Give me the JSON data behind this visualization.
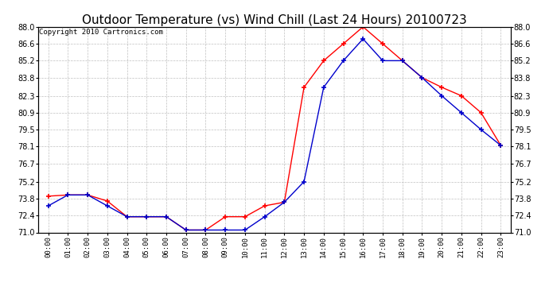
{
  "title": "Outdoor Temperature (vs) Wind Chill (Last 24 Hours) 20100723",
  "copyright": "Copyright 2010 Cartronics.com",
  "hours": [
    "00:00",
    "01:00",
    "02:00",
    "03:00",
    "04:00",
    "05:00",
    "06:00",
    "07:00",
    "08:00",
    "09:00",
    "10:00",
    "11:00",
    "12:00",
    "13:00",
    "14:00",
    "15:00",
    "16:00",
    "17:00",
    "18:00",
    "19:00",
    "20:00",
    "21:00",
    "22:00",
    "23:00"
  ],
  "outdoor_temp": [
    74.0,
    74.1,
    74.1,
    73.6,
    72.3,
    72.3,
    72.3,
    71.2,
    71.2,
    72.3,
    72.3,
    73.2,
    73.5,
    83.0,
    85.2,
    86.6,
    88.0,
    86.6,
    85.2,
    83.8,
    83.0,
    82.3,
    80.9,
    78.2
  ],
  "wind_chill": [
    73.2,
    74.1,
    74.1,
    73.2,
    72.3,
    72.3,
    72.3,
    71.2,
    71.2,
    71.2,
    71.2,
    72.3,
    73.5,
    75.2,
    83.0,
    85.2,
    87.0,
    85.2,
    85.2,
    83.8,
    82.3,
    80.9,
    79.5,
    78.2
  ],
  "temp_color": "#ff0000",
  "wind_color": "#0000cc",
  "bg_color": "#ffffff",
  "plot_bg": "#ffffff",
  "grid_color": "#c0c0c0",
  "ylim": [
    71.0,
    88.0
  ],
  "yticks": [
    71.0,
    72.4,
    73.8,
    75.2,
    76.7,
    78.1,
    79.5,
    80.9,
    82.3,
    83.8,
    85.2,
    86.6,
    88.0
  ],
  "title_fontsize": 11,
  "copyright_fontsize": 6.5
}
